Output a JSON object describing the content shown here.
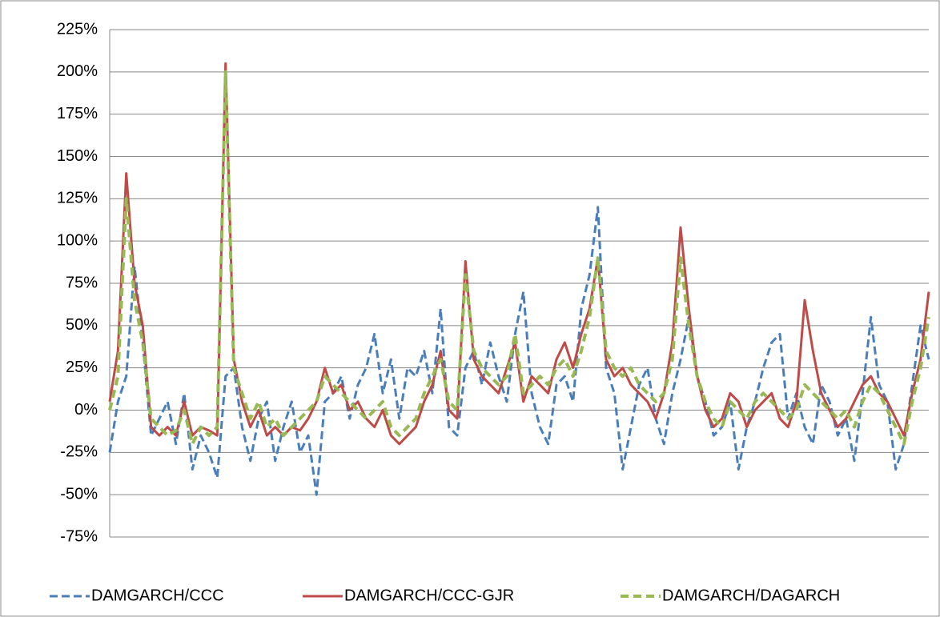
{
  "chart_data": {
    "type": "line",
    "ylim": [
      -75,
      225
    ],
    "yticks": [
      {
        "value": -75,
        "label": "-75%"
      },
      {
        "value": -50,
        "label": "-50%"
      },
      {
        "value": -25,
        "label": "-25%"
      },
      {
        "value": 0,
        "label": "0%"
      },
      {
        "value": 25,
        "label": "25%"
      },
      {
        "value": 50,
        "label": "50%"
      },
      {
        "value": 75,
        "label": "75%"
      },
      {
        "value": 100,
        "label": "100%"
      },
      {
        "value": 125,
        "label": "125%"
      },
      {
        "value": 150,
        "label": "150%"
      },
      {
        "value": 175,
        "label": "175%"
      },
      {
        "value": 200,
        "label": "200%"
      },
      {
        "value": 225,
        "label": "225%"
      }
    ],
    "grid": true,
    "legend": "bottom",
    "series": [
      {
        "name": "DAMGARCH/CCC",
        "color": "#4a7ebb",
        "dash": "10,5",
        "values": [
          -25,
          5,
          20,
          85,
          40,
          -15,
          -5,
          5,
          -20,
          10,
          -35,
          -15,
          -25,
          -40,
          20,
          25,
          -10,
          -30,
          -5,
          5,
          -30,
          -10,
          5,
          -25,
          -15,
          -50,
          5,
          10,
          20,
          -5,
          15,
          25,
          45,
          10,
          30,
          -5,
          25,
          20,
          35,
          10,
          60,
          -10,
          -15,
          25,
          35,
          15,
          40,
          20,
          5,
          45,
          70,
          10,
          -10,
          -20,
          15,
          20,
          5,
          60,
          80,
          120,
          25,
          10,
          -35,
          -10,
          15,
          25,
          -5,
          -20,
          10,
          30,
          55,
          20,
          5,
          -15,
          -10,
          5,
          -35,
          -10,
          5,
          25,
          40,
          45,
          -5,
          10,
          -10,
          -20,
          15,
          5,
          -15,
          -5,
          -30,
          10,
          55,
          15,
          5,
          -35,
          -20,
          15,
          50,
          30
        ]
      },
      {
        "name": "DAMGARCH/CCC-GJR",
        "color": "#be4b48",
        "dash": "none",
        "values": [
          5,
          35,
          140,
          75,
          50,
          -10,
          -15,
          -10,
          -15,
          5,
          -15,
          -10,
          -12,
          -15,
          205,
          30,
          5,
          -10,
          0,
          -15,
          -10,
          -15,
          -10,
          -12,
          -5,
          5,
          25,
          10,
          15,
          0,
          5,
          -5,
          -10,
          0,
          -15,
          -20,
          -15,
          -10,
          5,
          15,
          35,
          0,
          -5,
          88,
          30,
          20,
          15,
          10,
          25,
          40,
          5,
          20,
          15,
          10,
          30,
          40,
          25,
          45,
          60,
          90,
          30,
          20,
          25,
          15,
          10,
          5,
          -5,
          10,
          40,
          108,
          60,
          20,
          0,
          -10,
          -5,
          10,
          5,
          -10,
          0,
          5,
          10,
          -5,
          -10,
          5,
          65,
          35,
          10,
          0,
          -10,
          -5,
          5,
          15,
          20,
          10,
          5,
          -5,
          -15,
          10,
          30,
          70
        ]
      },
      {
        "name": "DAMGARCH/DAGARCH",
        "color": "#98b954",
        "dash": "10,6",
        "values": [
          0,
          20,
          125,
          65,
          40,
          -5,
          -10,
          -15,
          -12,
          0,
          -20,
          -10,
          -15,
          -10,
          200,
          25,
          10,
          -5,
          5,
          -10,
          -5,
          -15,
          -10,
          -5,
          0,
          5,
          20,
          15,
          10,
          5,
          0,
          -5,
          0,
          5,
          -10,
          -15,
          -10,
          -5,
          10,
          20,
          30,
          5,
          0,
          80,
          35,
          25,
          20,
          15,
          20,
          45,
          10,
          15,
          20,
          15,
          25,
          30,
          20,
          35,
          55,
          90,
          35,
          25,
          20,
          25,
          15,
          10,
          5,
          10,
          30,
          90,
          50,
          20,
          5,
          -5,
          -10,
          5,
          0,
          -5,
          5,
          10,
          5,
          0,
          -5,
          0,
          15,
          10,
          5,
          0,
          -5,
          0,
          -10,
          5,
          15,
          10,
          0,
          -10,
          -20,
          5,
          25,
          55
        ]
      }
    ]
  }
}
